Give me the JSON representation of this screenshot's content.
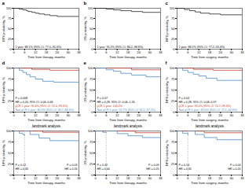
{
  "chart_data": [
    {
      "type": "line",
      "title": "a",
      "xlabel": "Time from therapy, months",
      "ylabel": "EFS probability, %",
      "xlim": [
        0,
        36
      ],
      "xticks": [
        0,
        6,
        12,
        18,
        24,
        30,
        36
      ],
      "ylim": [
        0,
        100
      ],
      "yticks": [
        0,
        25,
        50,
        75,
        100
      ],
      "grid": false,
      "annotations": [
        "1 year: 88.1% (95% CI: 77.0–95.0%)"
      ],
      "series": [
        {
          "color": "#222222",
          "x": [
            0,
            3,
            5,
            7,
            8,
            10,
            12,
            14,
            17,
            20,
            24,
            28,
            36
          ],
          "values": [
            100,
            98,
            96,
            94,
            92,
            90,
            88,
            86,
            84,
            82,
            80,
            80,
            80
          ]
        }
      ]
    },
    {
      "type": "line",
      "title": "b",
      "xlabel": "Time from therapy, months",
      "ylabel": "OS probability, %",
      "xlim": [
        0,
        36
      ],
      "xticks": [
        0,
        6,
        12,
        18,
        24,
        30,
        36
      ],
      "ylim": [
        0,
        100
      ],
      "yticks": [
        0,
        25,
        50,
        75,
        100
      ],
      "grid": false,
      "annotations": [
        "1 year: 95.2% (95% CI: 86.2–98.6%)"
      ],
      "series": [
        {
          "color": "#222222",
          "x": [
            0,
            6,
            10,
            14,
            20,
            26,
            36
          ],
          "values": [
            100,
            98,
            96,
            94,
            92,
            90,
            90
          ]
        }
      ]
    },
    {
      "type": "line",
      "title": "c",
      "xlabel": "Time from surgery, months",
      "ylabel": "RFS probability, %",
      "xlim": [
        0,
        36
      ],
      "xticks": [
        0,
        6,
        12,
        18,
        24,
        30,
        36
      ],
      "ylim": [
        0,
        100
      ],
      "yticks": [
        0,
        25,
        50,
        75,
        100
      ],
      "grid": false,
      "annotations": [
        "1 year: 88.2% (95% CI: 77.2–93.4%)"
      ],
      "series": [
        {
          "color": "#222222",
          "x": [
            0,
            4,
            7,
            10,
            13,
            18,
            24,
            36
          ],
          "values": [
            100,
            97,
            94,
            91,
            88,
            86,
            84,
            84
          ]
        }
      ]
    },
    {
      "type": "line",
      "title": "d",
      "xlabel": "Time from therapy, months",
      "ylabel": "EFS probability, %",
      "xlim": [
        0,
        36
      ],
      "xticks": [
        0,
        6,
        12,
        18,
        24,
        30,
        36
      ],
      "ylim": [
        0,
        100
      ],
      "yticks": [
        0,
        25,
        50,
        75,
        100
      ],
      "grid": false,
      "annotations": [
        "P = 0.008",
        "HR = 0.20, 95% CI: 0.06–0.66"
      ],
      "series": [
        {
          "name": "pCR 1 year: 95.6% (95% CI: 72.0–99.4%)",
          "color": "#c0392b",
          "x": [
            0,
            10,
            20,
            36
          ],
          "values": [
            100,
            97,
            95,
            95
          ]
        },
        {
          "name": "Non-pCR 1 year: 80.9% (95% CI: 69.7–88.3%)",
          "color": "#4a8cc8",
          "x": [
            0,
            3,
            5,
            7,
            9,
            12,
            16,
            22,
            36
          ],
          "values": [
            100,
            95,
            90,
            85,
            80,
            75,
            70,
            68,
            68
          ]
        }
      ]
    },
    {
      "type": "line",
      "title": "e",
      "xlabel": "Time from therapy, months",
      "ylabel": "OS probability, %",
      "xlim": [
        0,
        36
      ],
      "xticks": [
        0,
        6,
        12,
        18,
        24,
        30,
        36
      ],
      "ylim": [
        0,
        100
      ],
      "yticks": [
        0,
        25,
        50,
        75,
        100
      ],
      "grid": false,
      "annotations": [
        "P = 0.07",
        "HR = 0.28, 95% CI: 0.06–1.26"
      ],
      "series": [
        {
          "name": "pCR 1 year: 100.0%",
          "color": "#c0392b",
          "x": [
            0,
            20,
            36
          ],
          "values": [
            100,
            96,
            96
          ]
        },
        {
          "name": "Non-pCR 1 year: 92.7% (95% CI: 82.2–97.2%)",
          "color": "#4a8cc8",
          "x": [
            0,
            6,
            10,
            14,
            20,
            28,
            36
          ],
          "values": [
            100,
            96,
            93,
            88,
            84,
            80,
            80
          ]
        }
      ]
    },
    {
      "type": "line",
      "title": "f",
      "xlabel": "Time from surgery, months",
      "ylabel": "RFS probability, %",
      "xlim": [
        0,
        36
      ],
      "xticks": [
        0,
        6,
        12,
        18,
        24,
        30,
        36
      ],
      "ylim": [
        0,
        100
      ],
      "yticks": [
        0,
        25,
        50,
        75,
        100
      ],
      "grid": false,
      "annotations": [
        "P = 0.04",
        "HR = 0.28, 95% CI: 0.08–0.97"
      ],
      "series": [
        {
          "name": "pCR 1 year: 95.0% (95% CI: 70.7–99.3%)",
          "color": "#c0392b",
          "x": [
            0,
            9,
            20,
            36
          ],
          "values": [
            100,
            97,
            95,
            95
          ]
        },
        {
          "name": "Non-pCR 1 year: 83.9% (95% CI: 72.1–90.9%)",
          "color": "#4a8cc8",
          "x": [
            0,
            3,
            6,
            9,
            12,
            16,
            22,
            36
          ],
          "values": [
            100,
            95,
            90,
            86,
            82,
            77,
            72,
            72
          ]
        }
      ]
    },
    {
      "type": "line",
      "title": "landmark analysis",
      "xlabel": "Time from therapy, months",
      "ylabel": "EFS probability, %",
      "xlim": [
        0,
        36
      ],
      "xticks": [
        0,
        6,
        12,
        18,
        24,
        30,
        36
      ],
      "ylim": [
        0,
        100
      ],
      "yticks": [
        0,
        25,
        50,
        75,
        100
      ],
      "grid": false,
      "landmark": 6,
      "annotations": [
        "P = 0.12",
        "HR = 0.33",
        "P = 0.03",
        "HR = 0.16"
      ],
      "series": [
        {
          "color": "#c0392b",
          "x": [
            0,
            6,
            6,
            6,
            16,
            36
          ],
          "values": [
            100,
            100,
            null,
            100,
            97,
            97
          ]
        },
        {
          "color": "#4a8cc8",
          "x": [
            0,
            3,
            5,
            6,
            6,
            6,
            9,
            14,
            20,
            36
          ],
          "values": [
            100,
            95,
            92,
            90,
            null,
            100,
            92,
            84,
            78,
            78
          ]
        }
      ]
    },
    {
      "type": "line",
      "title": "landmark analysis",
      "xlabel": "Time from therapy, months",
      "ylabel": "OS probability, %",
      "xlim": [
        0,
        36
      ],
      "xticks": [
        0,
        6,
        12,
        18,
        24,
        30,
        36
      ],
      "ylim": [
        0,
        100
      ],
      "yticks": [
        0,
        25,
        50,
        75,
        100
      ],
      "grid": false,
      "landmark": 6,
      "annotations": [
        "P = 0.32",
        "HR = 0.40",
        "P = 0.09",
        "HR = 0.25"
      ],
      "series": [
        {
          "color": "#c0392b",
          "x": [
            0,
            6,
            6,
            6,
            22,
            36
          ],
          "values": [
            100,
            100,
            null,
            100,
            96,
            96
          ]
        },
        {
          "color": "#4a8cc8",
          "x": [
            0,
            4,
            6,
            6,
            6,
            12,
            18,
            26,
            36
          ],
          "values": [
            100,
            97,
            96,
            null,
            100,
            94,
            89,
            85,
            85
          ]
        }
      ]
    },
    {
      "type": "line",
      "title": "landmark analysis",
      "xlabel": "Time from surgery, months",
      "ylabel": "RFS probability, %",
      "xlim": [
        0,
        36
      ],
      "xticks": [
        0,
        6,
        12,
        18,
        24,
        30,
        36
      ],
      "ylim": [
        0,
        100
      ],
      "yticks": [
        0,
        25,
        50,
        75,
        100
      ],
      "grid": false,
      "landmark": 6,
      "annotations": [
        "P = 0.14",
        "HR = 0.35",
        "P = 0.04",
        "HR = 0.20"
      ],
      "series": [
        {
          "color": "#c0392b",
          "x": [
            0,
            6,
            6,
            6,
            15,
            36
          ],
          "values": [
            100,
            100,
            null,
            100,
            96,
            96
          ]
        },
        {
          "color": "#4a8cc8",
          "x": [
            0,
            3,
            6,
            6,
            6,
            10,
            15,
            22,
            36
          ],
          "values": [
            100,
            95,
            91,
            null,
            100,
            92,
            85,
            80,
            80
          ]
        }
      ]
    }
  ]
}
